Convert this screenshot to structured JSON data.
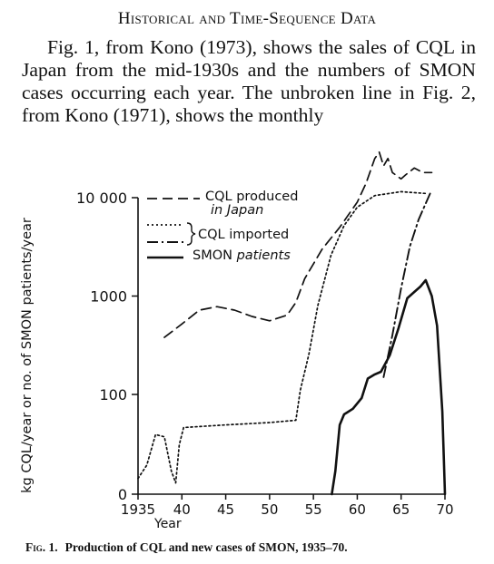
{
  "heading": "Historical and Time-Sequence Data",
  "paragraph": "Fig. 1, from Kono (1973), shows the sales of CQL in Japan from the mid-1930s and the numbers of SMON cases occurring each year. The unbroken line in Fig. 2, from Kono (1971), shows the monthly",
  "caption": {
    "label": "Fig. 1.",
    "text": "Production of CQL and new cases of SMON, 1935–70."
  },
  "chart_data": {
    "type": "line",
    "title": "",
    "xlabel": "Year",
    "ylabel": "kg CQL/year or no. of SMON patients/year",
    "xlim": [
      1935,
      1970
    ],
    "y_scale": "log",
    "y_ticks": [
      "0",
      "100",
      "1000",
      "10 000"
    ],
    "x_ticks": [
      "1935",
      "40",
      "45",
      "50",
      "55",
      "60",
      "65",
      "70"
    ],
    "legend": [
      "CQL produced in Japan",
      "CQL imported",
      "SMON patients"
    ],
    "legend_placement": "top-center",
    "series": [
      {
        "name": "CQL produced in Japan",
        "style": "dashed",
        "points": [
          [
            1938,
            380
          ],
          [
            1940,
            520
          ],
          [
            1942,
            720
          ],
          [
            1944,
            780
          ],
          [
            1946,
            720
          ],
          [
            1948,
            620
          ],
          [
            1950,
            560
          ],
          [
            1952,
            640
          ],
          [
            1953,
            860
          ],
          [
            1954,
            1500
          ],
          [
            1956,
            3000
          ],
          [
            1958,
            5000
          ],
          [
            1960,
            9000
          ],
          [
            1961,
            14000
          ],
          [
            1962,
            25000
          ],
          [
            1962.5,
            29000
          ],
          [
            1963,
            21000
          ],
          [
            1963.5,
            25000
          ],
          [
            1964,
            18000
          ],
          [
            1965,
            15500
          ],
          [
            1965.5,
            17000
          ],
          [
            1966.5,
            20000
          ],
          [
            1967.5,
            18000
          ],
          [
            1968.5,
            18000
          ]
        ]
      },
      {
        "name": "CQL imported",
        "style": "dotted",
        "points": [
          [
            1935,
            8
          ],
          [
            1936,
            12
          ],
          [
            1937,
            30
          ],
          [
            1938,
            28
          ],
          [
            1938.8,
            10
          ],
          [
            1939.3,
            7
          ],
          [
            1939.7,
            22
          ],
          [
            1940.2,
            37
          ],
          [
            1945,
            40
          ],
          [
            1950,
            43
          ],
          [
            1953,
            46
          ],
          [
            1953.5,
            110
          ],
          [
            1954.5,
            260
          ],
          [
            1955.5,
            800
          ],
          [
            1957,
            2600
          ],
          [
            1958.5,
            5200
          ],
          [
            1960,
            8000
          ],
          [
            1962,
            10500
          ],
          [
            1965,
            11500
          ],
          [
            1968,
            11000
          ]
        ]
      },
      {
        "name": "CQL imported",
        "style": "dash-dot",
        "points": [
          [
            1963,
            150
          ],
          [
            1964,
            400
          ],
          [
            1965,
            1200
          ],
          [
            1966,
            3200
          ],
          [
            1967,
            6000
          ],
          [
            1968.3,
            11000
          ]
        ]
      },
      {
        "name": "SMON patients",
        "style": "solid",
        "points": [
          [
            1957.1,
            0
          ],
          [
            1957.5,
            10
          ],
          [
            1958,
            40
          ],
          [
            1958.5,
            55
          ],
          [
            1959.5,
            65
          ],
          [
            1960.5,
            90
          ],
          [
            1961.2,
            145
          ],
          [
            1962,
            160
          ],
          [
            1962.7,
            170
          ],
          [
            1963.7,
            250
          ],
          [
            1964.7,
            470
          ],
          [
            1965.7,
            950
          ],
          [
            1966.5,
            1100
          ],
          [
            1967.2,
            1250
          ],
          [
            1967.8,
            1450
          ],
          [
            1968.5,
            1000
          ],
          [
            1969.1,
            500
          ],
          [
            1969.7,
            60
          ],
          [
            1970,
            0
          ]
        ]
      }
    ]
  }
}
